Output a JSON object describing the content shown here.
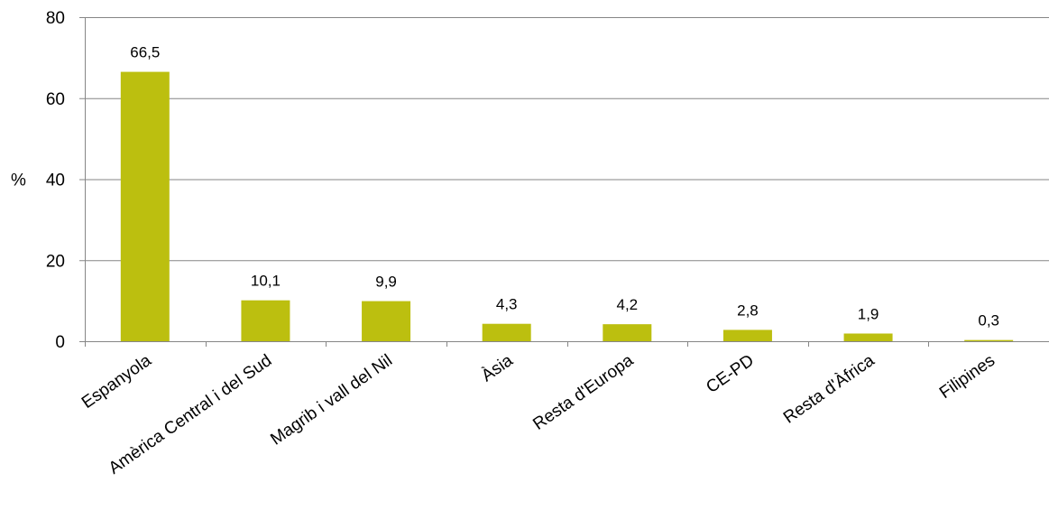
{
  "chart_data": {
    "type": "bar",
    "categories": [
      "Espanyola",
      "Amèrica Central i del Sud",
      "Magrib i vall del Nil",
      "Àsia",
      "Resta d'Europa",
      "CE-PD",
      "Resta d'Àfrica",
      "Filipines"
    ],
    "values": [
      66.5,
      10.1,
      9.9,
      4.3,
      4.2,
      2.8,
      1.9,
      0.3
    ],
    "data_labels": [
      "66,5",
      "10,1",
      "9,9",
      "4,3",
      "4,2",
      "2,8",
      "1,9",
      "0,3"
    ],
    "title": "",
    "xlabel": "",
    "ylabel": "%",
    "ylim": [
      0,
      80
    ],
    "yticks": [
      0,
      20,
      40,
      60,
      80
    ],
    "ytick_labels": [
      "0",
      "20",
      "40",
      "60",
      "80"
    ],
    "grid": true,
    "legend": "none",
    "bar_color": "#bcbf0f",
    "grid_color": "#868686"
  }
}
